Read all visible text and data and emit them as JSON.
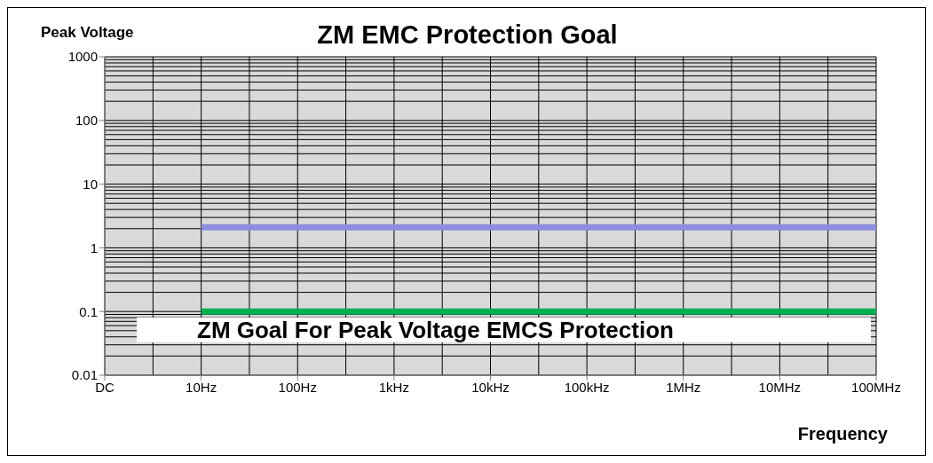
{
  "chart_data": {
    "type": "line",
    "title": "ZM EMC Protection Goal",
    "ylabel": "Peak Voltage",
    "xlabel": "Frequency",
    "annotations": [
      "ZM Goal For Peak Voltage EMCS Protection"
    ],
    "categories": [
      "DC",
      "10Hz",
      "100Hz",
      "1kHz",
      "10kHz",
      "100kHz",
      "1MHz",
      "10MHz",
      "100MHz"
    ],
    "series": [
      {
        "color": "#8c8ce0",
        "values": [
          null,
          2.1,
          2.1,
          2.1,
          2.1,
          2.1,
          2.1,
          2.1,
          2.1
        ]
      },
      {
        "color": "#00b050",
        "values": [
          null,
          0.1,
          0.1,
          0.1,
          0.1,
          0.1,
          0.1,
          0.1,
          0.1
        ]
      }
    ],
    "ylim": [
      0.01,
      1000
    ],
    "yticks": [
      0.01,
      0.1,
      1,
      10,
      100,
      1000
    ],
    "log": true,
    "grid": true,
    "marker": "none",
    "line_style": "solid"
  }
}
